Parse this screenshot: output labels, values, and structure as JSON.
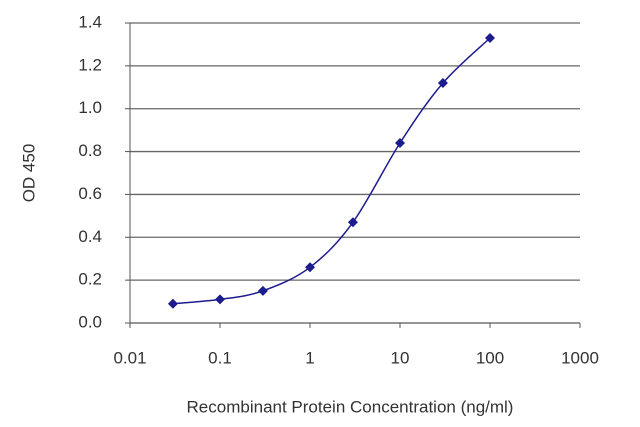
{
  "chart_data": {
    "type": "line",
    "x_label": "Recombinant Protein Concentration (ng/ml)",
    "y_label": "OD 450",
    "x": [
      0.03,
      0.1,
      0.3,
      1,
      3,
      10,
      30,
      100
    ],
    "values": [
      0.09,
      0.11,
      0.15,
      0.26,
      0.47,
      0.84,
      1.12,
      1.33
    ],
    "color": "#1c1c8e",
    "xscale": "log",
    "xlim": [
      0.01,
      1000
    ],
    "xticks": [
      0.01,
      0.1,
      1,
      10,
      100,
      1000
    ],
    "ylim": [
      0,
      1.4
    ],
    "yticks": [
      {
        "value": 0,
        "label": "0.0"
      },
      0.2,
      0.4,
      0.6,
      0.8,
      {
        "value": 1,
        "label": "1.0"
      },
      1.2,
      1.4
    ],
    "grid": true
  }
}
